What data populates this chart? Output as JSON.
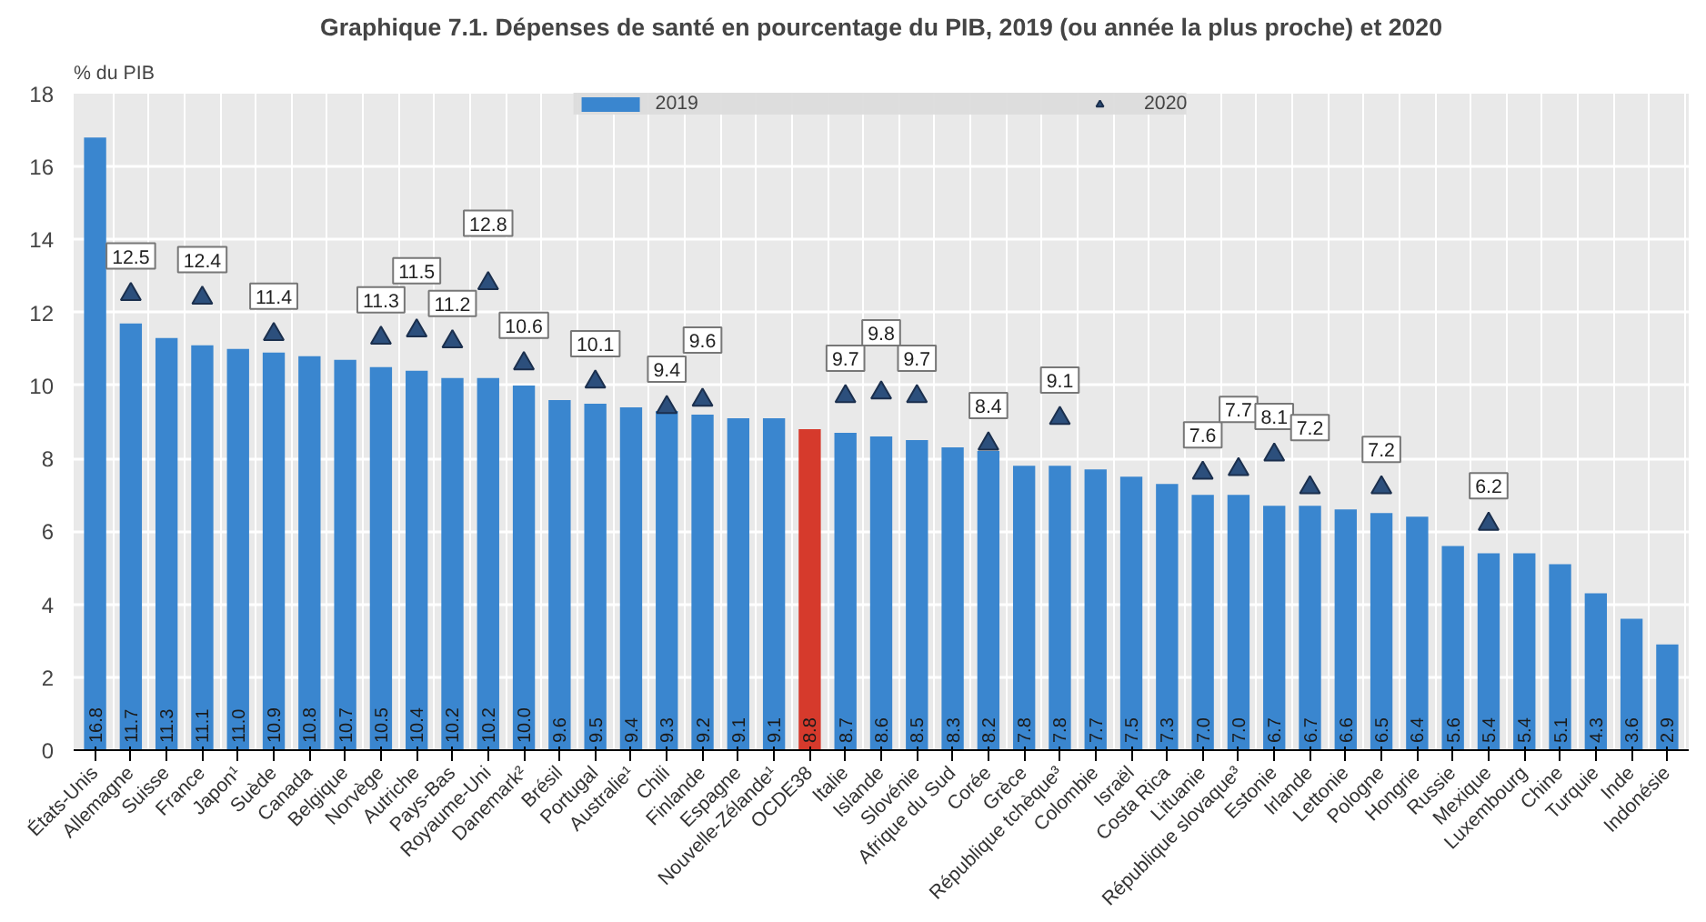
{
  "chart_data": {
    "type": "bar",
    "title": "Graphique 7.1. Dépenses de santé en pourcentage du PIB, 2019 (ou année la plus proche) et 2020",
    "ylabel": "% du PIB",
    "categories": [
      "États-Unis",
      "Allemagne",
      "Suisse",
      "France",
      "Japon¹",
      "Suède",
      "Canada",
      "Belgique",
      "Norvège",
      "Autriche",
      "Pays-Bas",
      "Royaume-Uni",
      "Danemark²",
      "Brésil",
      "Portugal",
      "Australie¹",
      "Chili",
      "Finlande",
      "Espagne",
      "Nouvelle-Zélande¹",
      "OCDE38",
      "Italie",
      "Islande",
      "Slovénie",
      "Afrique du Sud",
      "Corée",
      "Grèce",
      "République tchèque³",
      "Colombie",
      "Israël",
      "Costa Rica",
      "Lituanie",
      "République slovaque³",
      "Estonie",
      "Irlande",
      "Lettonie",
      "Pologne",
      "Hongrie",
      "Russie",
      "Mexique",
      "Luxembourg",
      "Chine",
      "Turquie",
      "Inde",
      "Indonésie"
    ],
    "series": [
      {
        "name": "2019",
        "color": "#3a86cf",
        "colors": [
          "#3a86cf",
          "#3a86cf",
          "#3a86cf",
          "#3a86cf",
          "#3a86cf",
          "#3a86cf",
          "#3a86cf",
          "#3a86cf",
          "#3a86cf",
          "#3a86cf",
          "#3a86cf",
          "#3a86cf",
          "#3a86cf",
          "#3a86cf",
          "#3a86cf",
          "#3a86cf",
          "#3a86cf",
          "#3a86cf",
          "#3a86cf",
          "#3a86cf",
          "#d63a2c",
          "#3a86cf",
          "#3a86cf",
          "#3a86cf",
          "#3a86cf",
          "#3a86cf",
          "#3a86cf",
          "#3a86cf",
          "#3a86cf",
          "#3a86cf",
          "#3a86cf",
          "#3a86cf",
          "#3a86cf",
          "#3a86cf",
          "#3a86cf",
          "#3a86cf",
          "#3a86cf",
          "#3a86cf",
          "#3a86cf",
          "#3a86cf",
          "#3a86cf",
          "#3a86cf",
          "#3a86cf",
          "#3a86cf",
          "#3a86cf"
        ],
        "values": [
          16.8,
          11.7,
          11.3,
          11.1,
          11.0,
          10.9,
          10.8,
          10.7,
          10.5,
          10.4,
          10.2,
          10.2,
          10.0,
          9.6,
          9.5,
          9.4,
          9.3,
          9.2,
          9.1,
          9.1,
          8.8,
          8.7,
          8.6,
          8.5,
          8.3,
          8.2,
          7.8,
          7.8,
          7.7,
          7.5,
          7.3,
          7.0,
          7.0,
          6.7,
          6.7,
          6.6,
          6.5,
          6.4,
          5.6,
          5.4,
          5.4,
          5.1,
          4.3,
          3.6,
          2.9
        ],
        "value_labels": [
          "16.8",
          "11.7",
          "11.3",
          "11.1",
          "11.0",
          "10.9",
          "10.8",
          "10.7",
          "10.5",
          "10.4",
          "10.2",
          "10.2",
          "10.0",
          "9.6",
          "9.5",
          "9.4",
          "9.3",
          "9.2",
          "9.1",
          "9.1",
          "8.8",
          "8.7",
          "8.6",
          "8.5",
          "8.3",
          "8.2",
          "7.8",
          "7.8",
          "7.7",
          "7.5",
          "7.3",
          "7.0",
          "7.0",
          "6.7",
          "6.7",
          "6.6",
          "6.5",
          "6.4",
          "5.6",
          "5.4",
          "5.4",
          "5.1",
          "4.3",
          "3.6",
          "2.9"
        ]
      },
      {
        "name": "2020",
        "type": "scatter",
        "marker": "triangle",
        "color": "#2c4f7c",
        "values": [
          null,
          12.5,
          null,
          12.4,
          null,
          11.4,
          null,
          null,
          11.3,
          11.5,
          11.2,
          12.8,
          10.6,
          null,
          10.1,
          null,
          9.4,
          9.6,
          null,
          null,
          null,
          9.7,
          9.8,
          9.7,
          null,
          8.4,
          null,
          9.1,
          null,
          null,
          null,
          7.6,
          7.7,
          8.1,
          7.2,
          null,
          7.2,
          null,
          null,
          6.2,
          null,
          null,
          null,
          null,
          null
        ],
        "value_labels": [
          null,
          "12.5",
          null,
          "12.4",
          null,
          "11.4",
          null,
          null,
          "11.3",
          "11.5",
          "11.2",
          "12.8",
          "10.6",
          null,
          "10.1",
          null,
          "9.4",
          "9.6",
          null,
          null,
          null,
          "9.7",
          "9.8",
          "9.7",
          null,
          "8.4",
          null,
          "9.1",
          null,
          null,
          null,
          "7.6",
          "7.7",
          "8.1",
          "7.2",
          null,
          "7.2",
          null,
          null,
          "6.2",
          null,
          null,
          null,
          null,
          null
        ]
      }
    ],
    "ylim": [
      0,
      18
    ],
    "yticks": [
      0,
      2,
      4,
      6,
      8,
      10,
      12,
      14,
      16,
      18
    ],
    "grid": true,
    "legend": "top"
  }
}
